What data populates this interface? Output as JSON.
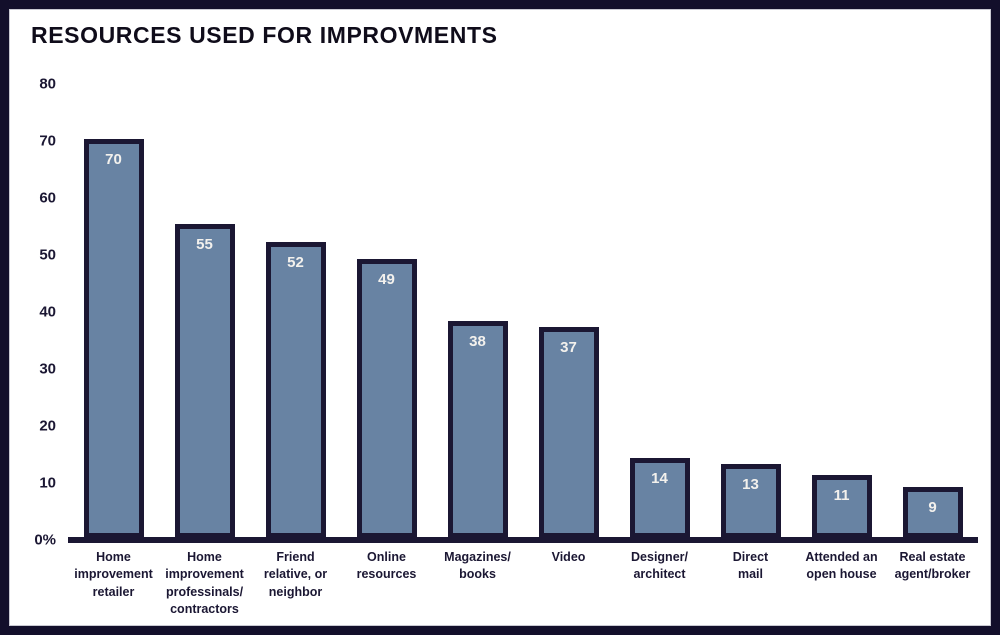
{
  "title": "RESOURCES USED FOR IMPROVMENTS",
  "colors": {
    "frame_border": "#130f2b",
    "text_ink": "#1b1733",
    "bar_fill": "#6883a3",
    "bar_border": "#1b1733",
    "value_label": "#f3f1ed",
    "background": "#ffffff"
  },
  "chart_data": {
    "type": "bar",
    "title": "RESOURCES USED FOR IMPROVMENTS",
    "categories": [
      "Home\nimprovement\nretailer",
      "Home\nimprovement\nprofessinals/\ncontractors",
      "Friend\nrelative, or\nneighbor",
      "Online\nresources",
      "Magazines/\nbooks",
      "Video",
      "Designer/\narchitect",
      "Direct\nmail",
      "Attended an\nopen house",
      "Real estate\nagent/broker"
    ],
    "values": [
      70,
      55,
      52,
      49,
      38,
      37,
      14,
      13,
      11,
      9
    ],
    "value_labels": [
      "70",
      "55",
      "52",
      "49",
      "38",
      "37",
      "14",
      "13",
      "11",
      "9"
    ],
    "xlabel": "",
    "ylabel": "",
    "ylim": [
      0,
      80
    ],
    "yticks": [
      80,
      70,
      60,
      50,
      40,
      30,
      20,
      10,
      0
    ],
    "ytick_labels": [
      "80",
      "70",
      "60",
      "50",
      "40",
      "30",
      "20",
      "10",
      "0%"
    ],
    "grid": false,
    "legend": false,
    "bar_labels_inside": true
  }
}
